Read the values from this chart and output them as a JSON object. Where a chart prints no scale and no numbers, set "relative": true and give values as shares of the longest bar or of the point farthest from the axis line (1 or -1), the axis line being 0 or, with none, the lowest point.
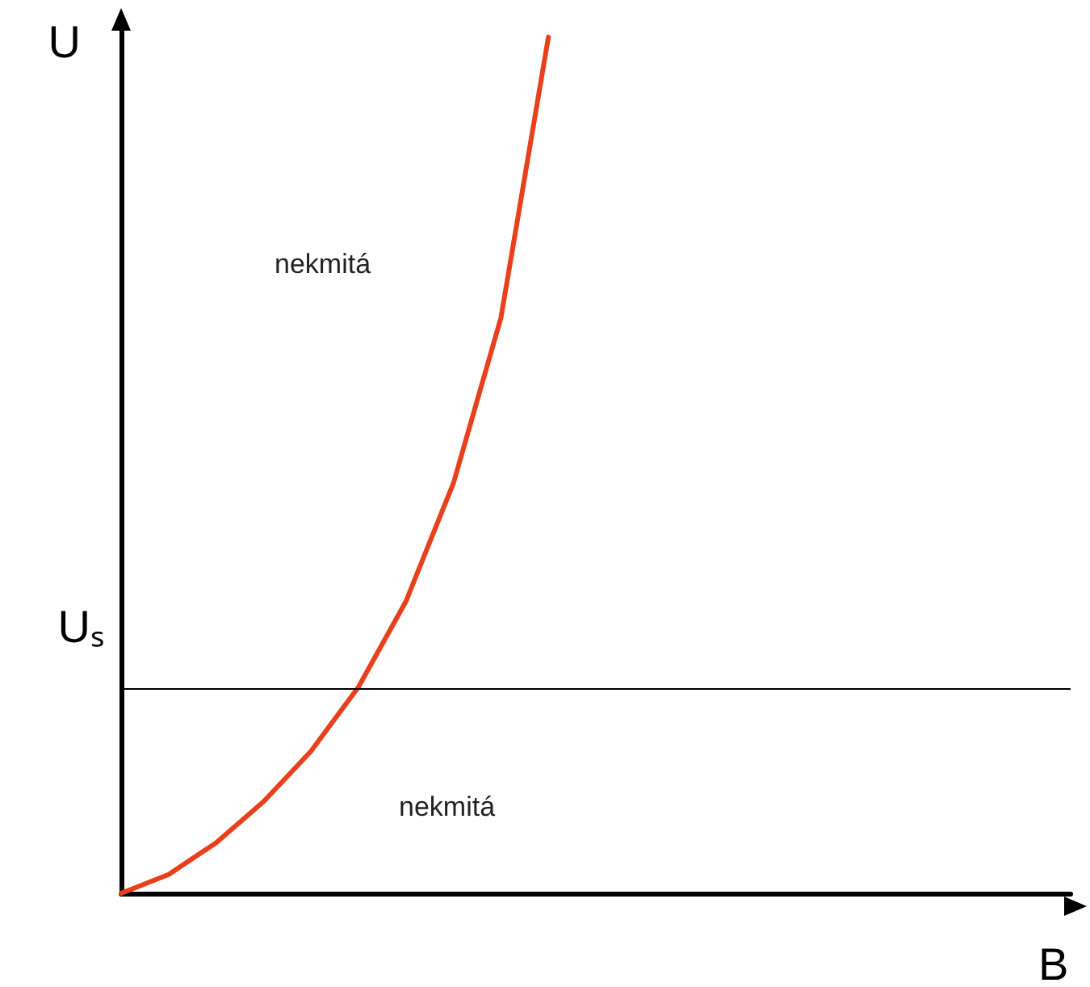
{
  "chart_data": {
    "type": "line",
    "relative": true,
    "xlabel": "B",
    "ylabel": "U",
    "grid": false,
    "marker": "none",
    "line_style": "solid",
    "categories": [
      null,
      null,
      null,
      null,
      null,
      null,
      null,
      null,
      null,
      null,
      null,
      null,
      null,
      null,
      null,
      null,
      null,
      null,
      null,
      null,
      null
    ],
    "series": [
      {
        "color": "#e8401c",
        "values": [
          0,
          0.022,
          0.059,
          0.107,
          0.166,
          0.241,
          0.341,
          0.479,
          0.672,
          1,
          null,
          null,
          null,
          null,
          null,
          null,
          null,
          null,
          null,
          null,
          null
        ]
      }
    ],
    "ref_lines": [
      {
        "axis": "y",
        "value": 0.241,
        "label": "Uₛ",
        "color": "#000000",
        "line_style": "solid"
      }
    ],
    "annotations": [
      "nekmitá",
      "nekmitá"
    ]
  }
}
